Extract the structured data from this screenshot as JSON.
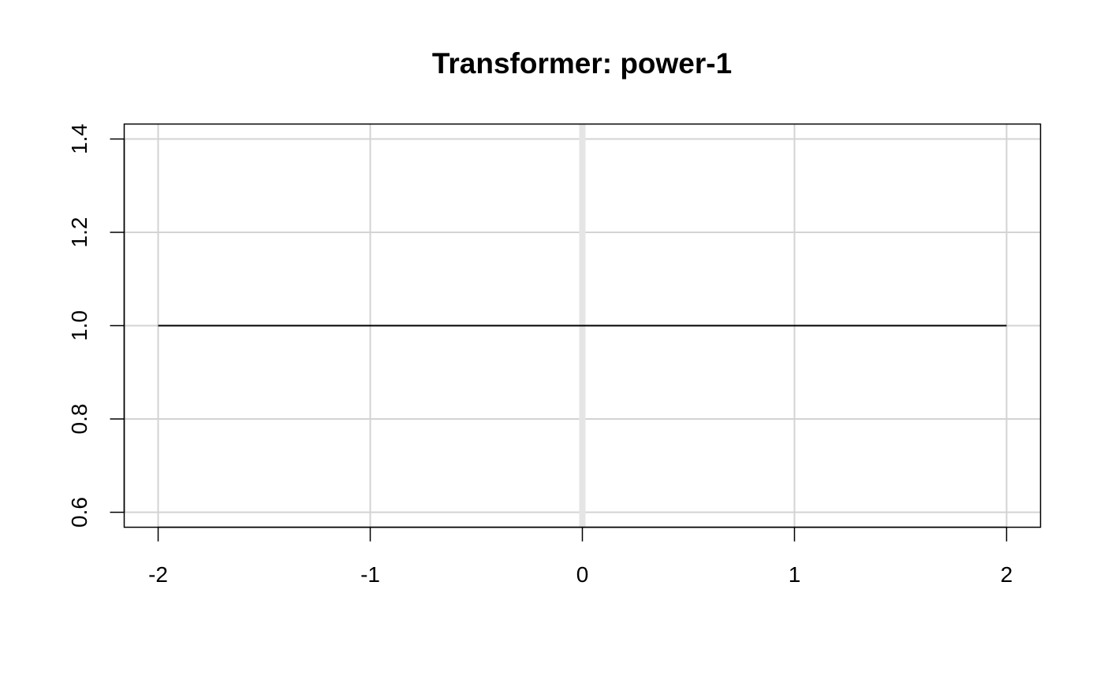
{
  "chart_data": {
    "type": "line",
    "title": "Transformer: power-1",
    "xlabel": "",
    "ylabel": "",
    "xlim": [
      -2.16,
      2.16
    ],
    "ylim": [
      0.568,
      1.432
    ],
    "x_ticks": [
      -2,
      -1,
      0,
      1,
      2
    ],
    "x_tick_labels": [
      "-2",
      "-1",
      "0",
      "1",
      "2"
    ],
    "y_ticks": [
      0.6,
      0.8,
      1.0,
      1.2,
      1.4
    ],
    "y_tick_labels": [
      "0.6",
      "0.8",
      "1.0",
      "1.2",
      "1.4"
    ],
    "grid": true,
    "reference_line": {
      "orientation": "vertical",
      "x": 0
    },
    "series": [
      {
        "x": [
          -2,
          2
        ],
        "y": [
          1.0,
          1.0
        ]
      }
    ],
    "colors": {
      "line": "#000000",
      "grid": "#d3d3d3",
      "reference_line": "#e5e5e5",
      "axis": "#000000"
    }
  }
}
